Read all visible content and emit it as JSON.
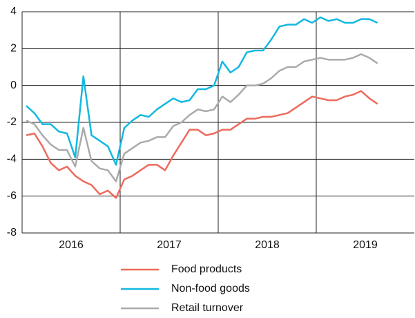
{
  "chart_data": {
    "type": "line",
    "x": [
      2016.042,
      2016.125,
      2016.208,
      2016.292,
      2016.375,
      2016.458,
      2016.542,
      2016.625,
      2016.708,
      2016.792,
      2016.875,
      2016.958,
      2017.042,
      2017.125,
      2017.208,
      2017.292,
      2017.375,
      2017.458,
      2017.542,
      2017.625,
      2017.708,
      2017.792,
      2017.875,
      2017.958,
      2018.042,
      2018.125,
      2018.208,
      2018.292,
      2018.375,
      2018.458,
      2018.542,
      2018.625,
      2018.708,
      2018.792,
      2018.875,
      2018.958,
      2019.042,
      2019.125,
      2019.208,
      2019.292,
      2019.375,
      2019.458,
      2019.542,
      2019.625
    ],
    "series": [
      {
        "name": "Food products",
        "color": "#ee6a5c",
        "values": [
          -2.7,
          -2.6,
          -3.3,
          -4.2,
          -4.6,
          -4.4,
          -4.9,
          -5.2,
          -5.4,
          -5.9,
          -5.7,
          -6.1,
          -5.1,
          -4.9,
          -4.6,
          -4.3,
          -4.3,
          -4.6,
          -3.8,
          -3.1,
          -2.4,
          -2.4,
          -2.7,
          -2.6,
          -2.4,
          -2.4,
          -2.1,
          -1.8,
          -1.8,
          -1.7,
          -1.7,
          -1.6,
          -1.5,
          -1.2,
          -0.9,
          -0.6,
          -0.7,
          -0.8,
          -0.8,
          -0.6,
          -0.5,
          -0.3,
          -0.7,
          -1.0
        ]
      },
      {
        "name": "Non-food goods",
        "color": "#12b8e0",
        "values": [
          -1.1,
          -1.5,
          -2.1,
          -2.1,
          -2.5,
          -2.6,
          -3.9,
          0.5,
          -2.7,
          -3.0,
          -3.3,
          -4.3,
          -2.3,
          -1.9,
          -1.6,
          -1.7,
          -1.3,
          -1.0,
          -0.7,
          -0.9,
          -0.8,
          -0.2,
          -0.2,
          0.0,
          1.3,
          0.7,
          1.0,
          1.8,
          1.9,
          1.9,
          2.5,
          3.2,
          3.3,
          3.3,
          3.6,
          3.4,
          3.7,
          3.5,
          3.6,
          3.4,
          3.4,
          3.6,
          3.6,
          3.4
        ]
      },
      {
        "name": "Retail turnover",
        "color": "#aaaaaa",
        "values": [
          -1.9,
          -2.1,
          -2.7,
          -3.2,
          -3.5,
          -3.5,
          -4.4,
          -2.3,
          -4.1,
          -4.5,
          -4.6,
          -5.2,
          -3.7,
          -3.4,
          -3.1,
          -3.0,
          -2.8,
          -2.8,
          -2.2,
          -2.0,
          -1.6,
          -1.3,
          -1.4,
          -1.3,
          -0.6,
          -0.9,
          -0.5,
          0.0,
          0.0,
          0.1,
          0.4,
          0.8,
          1.0,
          1.0,
          1.3,
          1.4,
          1.5,
          1.4,
          1.4,
          1.4,
          1.5,
          1.7,
          1.5,
          1.2
        ]
      }
    ],
    "xlim": [
      2016,
      2020
    ],
    "xticks": [
      {
        "value": 2016.5,
        "label": "2016"
      },
      {
        "value": 2017.5,
        "label": "2017"
      },
      {
        "value": 2018.5,
        "label": "2018"
      },
      {
        "value": 2019.5,
        "label": "2019"
      }
    ],
    "xgrid": [
      2017,
      2018,
      2019
    ],
    "ylim": [
      -8,
      4
    ],
    "yticks": [
      -8,
      -6,
      -4,
      -2,
      0,
      2,
      4
    ],
    "grid": true
  }
}
